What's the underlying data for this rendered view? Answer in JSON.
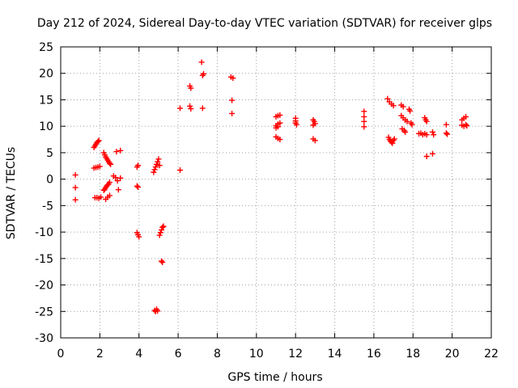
{
  "chart_data": {
    "type": "scatter",
    "title": "Day 212 of 2024, Sidereal Day-to-day VTEC variation (SDTVAR) for receiver glps",
    "xlabel": "GPS time / hours",
    "ylabel": "SDTVAR / TECUs",
    "xlim": [
      0,
      22
    ],
    "ylim": [
      -30,
      25
    ],
    "xticks": [
      0,
      2,
      4,
      6,
      8,
      10,
      12,
      14,
      16,
      18,
      20,
      22
    ],
    "yticks": [
      -30,
      -25,
      -20,
      -15,
      -10,
      -5,
      0,
      5,
      10,
      15,
      20,
      25
    ],
    "grid": true,
    "marker": "plus",
    "color": "#ff0000",
    "series": [
      {
        "name": "SDTVAR",
        "points": [
          [
            0.75,
            0.8
          ],
          [
            0.75,
            -1.6
          ],
          [
            0.75,
            -3.9
          ],
          [
            1.7,
            6.0
          ],
          [
            1.75,
            6.3
          ],
          [
            1.8,
            6.6
          ],
          [
            1.85,
            6.9
          ],
          [
            1.9,
            7.1
          ],
          [
            1.95,
            7.3
          ],
          [
            1.7,
            2.1
          ],
          [
            1.8,
            2.2
          ],
          [
            1.9,
            2.3
          ],
          [
            2.0,
            2.4
          ],
          [
            1.75,
            -3.5
          ],
          [
            1.85,
            -3.5
          ],
          [
            1.95,
            -3.6
          ],
          [
            2.05,
            -3.4
          ],
          [
            2.2,
            5.0
          ],
          [
            2.25,
            4.6
          ],
          [
            2.3,
            4.2
          ],
          [
            2.35,
            3.9
          ],
          [
            2.4,
            3.6
          ],
          [
            2.45,
            3.3
          ],
          [
            2.5,
            3.0
          ],
          [
            2.55,
            2.8
          ],
          [
            2.2,
            -2.1
          ],
          [
            2.25,
            -1.9
          ],
          [
            2.3,
            -1.6
          ],
          [
            2.35,
            -1.3
          ],
          [
            2.4,
            -1.1
          ],
          [
            2.45,
            -0.9
          ],
          [
            2.5,
            -0.6
          ],
          [
            2.3,
            -3.8
          ],
          [
            2.4,
            -3.4
          ],
          [
            2.5,
            -3.1
          ],
          [
            2.7,
            0.6
          ],
          [
            2.8,
            0.3
          ],
          [
            2.85,
            5.2
          ],
          [
            2.9,
            -0.3
          ],
          [
            2.95,
            -2.0
          ],
          [
            3.05,
            5.4
          ],
          [
            3.05,
            0.2
          ],
          [
            3.9,
            2.3
          ],
          [
            3.95,
            2.6
          ],
          [
            3.9,
            -1.3
          ],
          [
            3.95,
            -1.5
          ],
          [
            3.9,
            -10.1
          ],
          [
            3.95,
            -10.5
          ],
          [
            4.0,
            -10.9
          ],
          [
            4.75,
            1.3
          ],
          [
            4.8,
            1.8
          ],
          [
            4.85,
            2.3
          ],
          [
            4.9,
            2.8
          ],
          [
            4.95,
            3.3
          ],
          [
            5.0,
            3.8
          ],
          [
            5.05,
            2.6
          ],
          [
            4.8,
            -24.8
          ],
          [
            4.85,
            -25.0
          ],
          [
            4.9,
            -24.6
          ],
          [
            4.95,
            -24.9
          ],
          [
            5.05,
            -10.6
          ],
          [
            5.1,
            -10.1
          ],
          [
            5.15,
            -9.6
          ],
          [
            5.2,
            -9.1
          ],
          [
            5.25,
            -8.9
          ],
          [
            5.15,
            -15.5
          ],
          [
            5.2,
            -15.7
          ],
          [
            6.1,
            13.4
          ],
          [
            6.1,
            1.7
          ],
          [
            6.6,
            17.6
          ],
          [
            6.65,
            17.2
          ],
          [
            6.6,
            13.8
          ],
          [
            6.65,
            13.3
          ],
          [
            7.2,
            22.1
          ],
          [
            7.25,
            19.6
          ],
          [
            7.3,
            19.9
          ],
          [
            7.25,
            13.4
          ],
          [
            8.7,
            19.3
          ],
          [
            8.8,
            19.1
          ],
          [
            8.75,
            14.9
          ],
          [
            8.75,
            12.4
          ],
          [
            11.0,
            11.8
          ],
          [
            11.1,
            12.0
          ],
          [
            11.2,
            12.1
          ],
          [
            11.0,
            10.1
          ],
          [
            11.1,
            10.4
          ],
          [
            11.2,
            10.6
          ],
          [
            11.0,
            9.7
          ],
          [
            11.1,
            9.9
          ],
          [
            11.0,
            8.0
          ],
          [
            11.1,
            7.7
          ],
          [
            11.2,
            7.5
          ],
          [
            12.0,
            11.5
          ],
          [
            12.0,
            11.0
          ],
          [
            12.0,
            10.6
          ],
          [
            12.05,
            10.3
          ],
          [
            12.9,
            11.2
          ],
          [
            12.95,
            10.9
          ],
          [
            13.0,
            10.5
          ],
          [
            12.9,
            10.2
          ],
          [
            12.9,
            7.6
          ],
          [
            13.0,
            7.3
          ],
          [
            15.5,
            12.8
          ],
          [
            15.5,
            11.8
          ],
          [
            15.5,
            10.9
          ],
          [
            15.5,
            9.9
          ],
          [
            16.7,
            15.2
          ],
          [
            16.8,
            14.6
          ],
          [
            16.9,
            14.2
          ],
          [
            17.0,
            13.9
          ],
          [
            16.75,
            7.9
          ],
          [
            16.8,
            7.5
          ],
          [
            16.85,
            7.2
          ],
          [
            16.9,
            7.0
          ],
          [
            16.95,
            6.8
          ],
          [
            17.0,
            7.3
          ],
          [
            17.05,
            7.6
          ],
          [
            17.4,
            14.0
          ],
          [
            17.5,
            13.7
          ],
          [
            17.4,
            12.0
          ],
          [
            17.5,
            11.6
          ],
          [
            17.6,
            11.2
          ],
          [
            17.7,
            10.9
          ],
          [
            17.45,
            9.5
          ],
          [
            17.55,
            9.2
          ],
          [
            17.6,
            8.9
          ],
          [
            17.8,
            13.2
          ],
          [
            17.85,
            12.9
          ],
          [
            17.9,
            10.6
          ],
          [
            17.95,
            10.3
          ],
          [
            18.3,
            8.6
          ],
          [
            18.4,
            8.7
          ],
          [
            18.5,
            8.4
          ],
          [
            18.6,
            8.6
          ],
          [
            18.7,
            8.4
          ],
          [
            18.6,
            11.6
          ],
          [
            18.65,
            11.2
          ],
          [
            18.7,
            10.9
          ],
          [
            18.7,
            4.3
          ],
          [
            19.0,
            4.8
          ],
          [
            19.0,
            8.9
          ],
          [
            19.05,
            8.4
          ],
          [
            19.7,
            10.3
          ],
          [
            19.7,
            8.7
          ],
          [
            19.75,
            8.5
          ],
          [
            20.5,
            11.2
          ],
          [
            20.6,
            11.5
          ],
          [
            20.7,
            11.8
          ],
          [
            20.5,
            10.2
          ],
          [
            20.6,
            10.0
          ],
          [
            20.7,
            10.3
          ],
          [
            20.75,
            10.1
          ]
        ]
      }
    ]
  }
}
